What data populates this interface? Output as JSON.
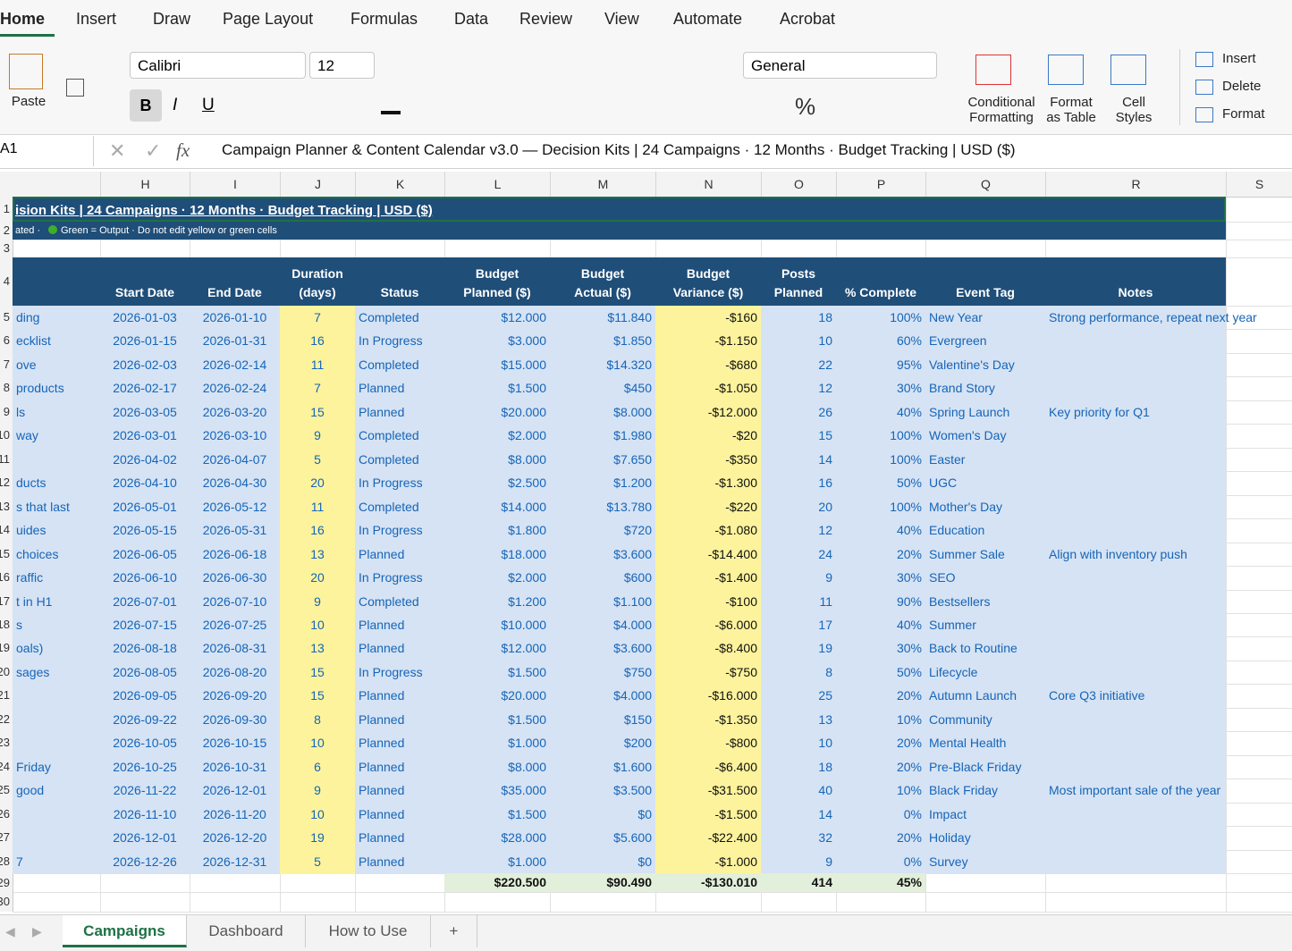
{
  "ribbon": {
    "tabs": [
      "Home",
      "Insert",
      "Draw",
      "Page Layout",
      "Formulas",
      "Data",
      "Review",
      "View",
      "Automate",
      "Acrobat"
    ],
    "paste": "Paste",
    "font": "Calibri",
    "font_size": "12",
    "number_format": "General",
    "conditional_formatting": [
      "Conditional",
      "Formatting"
    ],
    "format_as_table": [
      "Format",
      "as Table"
    ],
    "cell_styles": [
      "Cell",
      "Styles"
    ],
    "cells_group": [
      "Insert",
      "Delete",
      "Format"
    ]
  },
  "formula_bar": {
    "name_box": "A1",
    "fx": "fx",
    "content": "Campaign Planner & Content Calendar v3.0 — Decision Kits  |  24 Campaigns  ·  12 Months  ·  Budget Tracking  |  USD ($)"
  },
  "grid": {
    "column_letters": [
      "H",
      "I",
      "J",
      "K",
      "L",
      "M",
      "N",
      "O",
      "P",
      "Q",
      "R",
      "S"
    ],
    "row_numbers": [
      "1",
      "2",
      "3",
      "4",
      "5",
      "6",
      "7",
      "8",
      "9",
      "10",
      "11",
      "12",
      "13",
      "14",
      "15",
      "16",
      "17",
      "18",
      "19",
      "20",
      "21",
      "22",
      "23",
      "24",
      "25",
      "26",
      "27",
      "28",
      "29",
      "30"
    ],
    "title": "ision Kits  |  24 Campaigns  ·  12 Months  ·  Budget Tracking  |  USD ($)",
    "subtitle_left": "ated  ·",
    "subtitle_right": "Green = Output  ·  Do not edit yellow or green cells",
    "headers": [
      null,
      [
        "Start Date"
      ],
      [
        "End Date"
      ],
      [
        "Duration",
        "(days)"
      ],
      [
        "Status"
      ],
      [
        "Budget",
        "Planned ($)"
      ],
      [
        "Budget",
        "Actual ($)"
      ],
      [
        "Budget",
        "Variance ($)"
      ],
      [
        "Posts",
        "Planned"
      ],
      [
        "% Complete"
      ],
      [
        "Event Tag"
      ],
      [
        "Notes"
      ]
    ],
    "rows": [
      [
        "ding",
        "2026-01-03",
        "2026-01-10",
        "7",
        "Completed",
        "$12.000",
        "$11.840",
        "-$160",
        "18",
        "100%",
        "New Year",
        "Strong performance, repeat next year"
      ],
      [
        "ecklist",
        "2026-01-15",
        "2026-01-31",
        "16",
        "In Progress",
        "$3.000",
        "$1.850",
        "-$1.150",
        "10",
        "60%",
        "Evergreen",
        null
      ],
      [
        "ove",
        "2026-02-03",
        "2026-02-14",
        "11",
        "Completed",
        "$15.000",
        "$14.320",
        "-$680",
        "22",
        "95%",
        "Valentine's Day",
        null
      ],
      [
        "products",
        "2026-02-17",
        "2026-02-24",
        "7",
        "Planned",
        "$1.500",
        "$450",
        "-$1.050",
        "12",
        "30%",
        "Brand Story",
        null
      ],
      [
        "ls",
        "2026-03-05",
        "2026-03-20",
        "15",
        "Planned",
        "$20.000",
        "$8.000",
        "-$12.000",
        "26",
        "40%",
        "Spring Launch",
        "Key priority for Q1"
      ],
      [
        "way",
        "2026-03-01",
        "2026-03-10",
        "9",
        "Completed",
        "$2.000",
        "$1.980",
        "-$20",
        "15",
        "100%",
        "Women's Day",
        null
      ],
      [
        null,
        "2026-04-02",
        "2026-04-07",
        "5",
        "Completed",
        "$8.000",
        "$7.650",
        "-$350",
        "14",
        "100%",
        "Easter",
        null
      ],
      [
        "ducts",
        "2026-04-10",
        "2026-04-30",
        "20",
        "In Progress",
        "$2.500",
        "$1.200",
        "-$1.300",
        "16",
        "50%",
        "UGC",
        null
      ],
      [
        "s that last",
        "2026-05-01",
        "2026-05-12",
        "11",
        "Completed",
        "$14.000",
        "$13.780",
        "-$220",
        "20",
        "100%",
        "Mother's Day",
        null
      ],
      [
        "uides",
        "2026-05-15",
        "2026-05-31",
        "16",
        "In Progress",
        "$1.800",
        "$720",
        "-$1.080",
        "12",
        "40%",
        "Education",
        null
      ],
      [
        "choices",
        "2026-06-05",
        "2026-06-18",
        "13",
        "Planned",
        "$18.000",
        "$3.600",
        "-$14.400",
        "24",
        "20%",
        "Summer Sale",
        "Align with inventory push"
      ],
      [
        "raffic",
        "2026-06-10",
        "2026-06-30",
        "20",
        "In Progress",
        "$2.000",
        "$600",
        "-$1.400",
        "9",
        "30%",
        "SEO",
        null
      ],
      [
        "t in H1",
        "2026-07-01",
        "2026-07-10",
        "9",
        "Completed",
        "$1.200",
        "$1.100",
        "-$100",
        "11",
        "90%",
        "Bestsellers",
        null
      ],
      [
        "s",
        "2026-07-15",
        "2026-07-25",
        "10",
        "Planned",
        "$10.000",
        "$4.000",
        "-$6.000",
        "17",
        "40%",
        "Summer",
        null
      ],
      [
        "oals)",
        "2026-08-18",
        "2026-08-31",
        "13",
        "Planned",
        "$12.000",
        "$3.600",
        "-$8.400",
        "19",
        "30%",
        "Back to Routine",
        null
      ],
      [
        "sages",
        "2026-08-05",
        "2026-08-20",
        "15",
        "In Progress",
        "$1.500",
        "$750",
        "-$750",
        "8",
        "50%",
        "Lifecycle",
        null
      ],
      [
        null,
        "2026-09-05",
        "2026-09-20",
        "15",
        "Planned",
        "$20.000",
        "$4.000",
        "-$16.000",
        "25",
        "20%",
        "Autumn Launch",
        "Core Q3 initiative"
      ],
      [
        null,
        "2026-09-22",
        "2026-09-30",
        "8",
        "Planned",
        "$1.500",
        "$150",
        "-$1.350",
        "13",
        "10%",
        "Community",
        null
      ],
      [
        null,
        "2026-10-05",
        "2026-10-15",
        "10",
        "Planned",
        "$1.000",
        "$200",
        "-$800",
        "10",
        "20%",
        "Mental Health",
        null
      ],
      [
        "Friday",
        "2026-10-25",
        "2026-10-31",
        "6",
        "Planned",
        "$8.000",
        "$1.600",
        "-$6.400",
        "18",
        "20%",
        "Pre-Black Friday",
        null
      ],
      [
        "good",
        "2026-11-22",
        "2026-12-01",
        "9",
        "Planned",
        "$35.000",
        "$3.500",
        "-$31.500",
        "40",
        "10%",
        "Black Friday",
        "Most important sale of the year"
      ],
      [
        null,
        "2026-11-10",
        "2026-11-20",
        "10",
        "Planned",
        "$1.500",
        "$0",
        "-$1.500",
        "14",
        "0%",
        "Impact",
        null
      ],
      [
        null,
        "2026-12-01",
        "2026-12-20",
        "19",
        "Planned",
        "$28.000",
        "$5.600",
        "-$22.400",
        "32",
        "20%",
        "Holiday",
        null
      ],
      [
        "7",
        "2026-12-26",
        "2026-12-31",
        "5",
        "Planned",
        "$1.000",
        "$0",
        "-$1.000",
        "9",
        "0%",
        "Survey",
        null
      ]
    ],
    "totals": [
      null,
      null,
      null,
      null,
      null,
      "$220.500",
      "$90.490",
      "-$130.010",
      "414",
      "45%",
      null,
      null
    ]
  },
  "sheet_tabs": [
    "Campaigns",
    "Dashboard",
    "How to Use",
    "+"
  ]
}
